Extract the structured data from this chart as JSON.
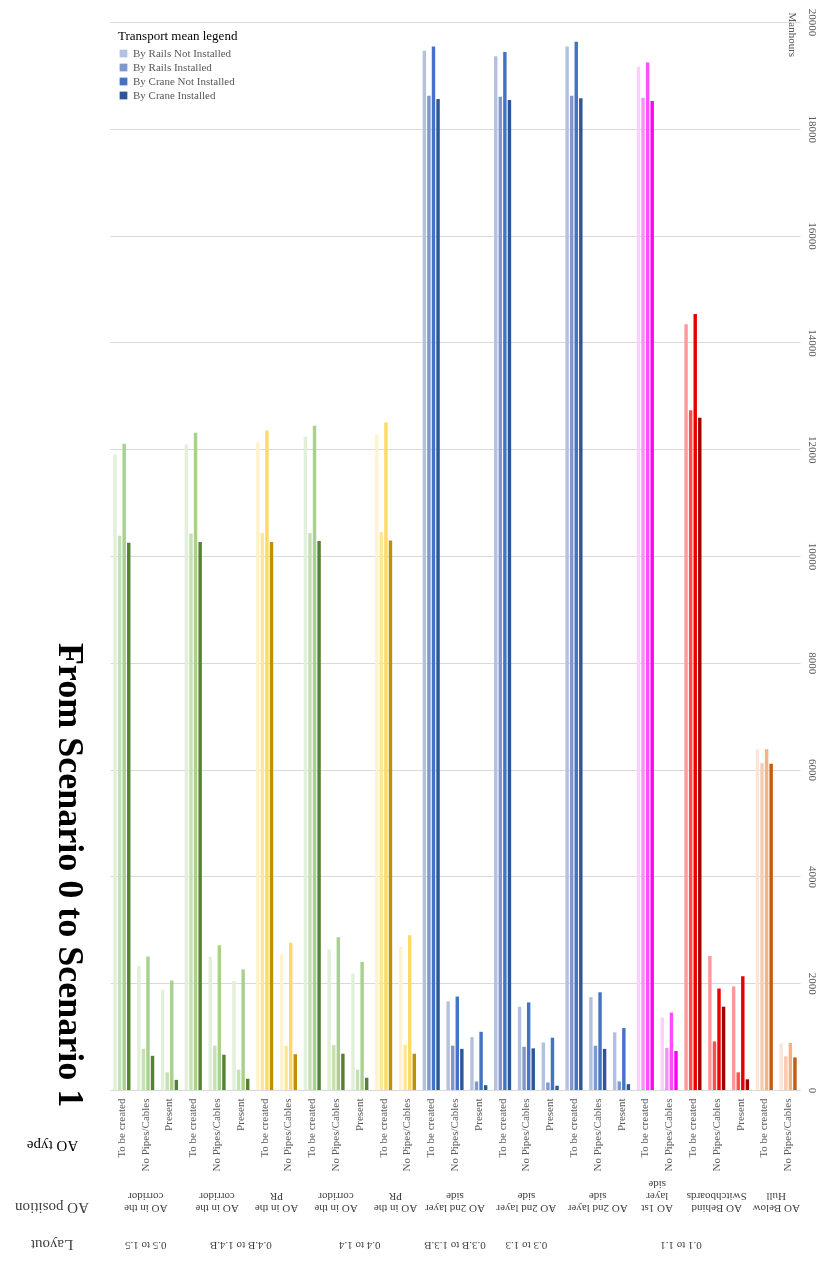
{
  "chart_data": {
    "type": "bar",
    "title": "From Scenario 0 to Scenario 1",
    "xlabel": "AO type",
    "ylabel": "Manhours",
    "legend_title": "Transport mean legend",
    "categories": [
      "To be created",
      "No Pipes/Cables",
      "Present",
      "To be created",
      "No Pipes/Cables",
      "Present",
      "To be created",
      "No Pipes/Cables",
      "To be created",
      "No Pipes/Cables",
      "Present",
      "To be created",
      "No Pipes/Cables",
      "To be created",
      "No Pipes/Cables",
      "Present",
      "To be created",
      "No Pipes/Cables",
      "Present",
      "To be created",
      "No Pipes/Cables",
      "Present",
      "To be created",
      "No Pipes/Cables",
      "To be created",
      "No Pipes/Cables",
      "Present",
      "To be created",
      "No Pipes/Cables"
    ],
    "series": [
      {
        "name": "By Rails Not Installed",
        "color": "#b4c0e0",
        "values": [
          11900,
          2320,
          1880,
          12090,
          2490,
          2040,
          12130,
          2540,
          12230,
          2630,
          2180,
          12270,
          2680,
          19460,
          1660,
          990,
          19360,
          1560,
          890,
          19540,
          1740,
          1080,
          19160,
          1360,
          14340,
          2510,
          1940,
          6380,
          870
        ],
        "colors": [
          "#e2efd9",
          "#e2efd9",
          "#e2efd9",
          "#e2efd9",
          "#e2efd9",
          "#e2efd9",
          "#fff2cc",
          "#fff2cc",
          "#e2efd9",
          "#e2efd9",
          "#e2efd9",
          "#fff2cc",
          "#fff2cc",
          "#b4c0e0",
          "#b4c0e0",
          "#b4c0e0",
          "#b4c0e0",
          "#b4c0e0",
          "#b4c0e0",
          "#b4c0e0",
          "#b4c0e0",
          "#b4c0e0",
          "#fbd0fb",
          "#fbd0fb",
          "#ff9999",
          "#ff9999",
          "#ff9999",
          "#fbe5d6",
          "#fbe5d6"
        ]
      },
      {
        "name": "By Rails Installed",
        "color": "#7f96cf",
        "values": [
          10380,
          770,
          330,
          10420,
          830,
          380,
          10430,
          830,
          10430,
          840,
          380,
          10450,
          850,
          18620,
          830,
          160,
          18600,
          810,
          140,
          18620,
          830,
          160,
          18580,
          790,
          12730,
          910,
          330,
          6120,
          630
        ],
        "colors": [
          "#c5e0b4",
          "#c5e0b4",
          "#c5e0b4",
          "#c5e0b4",
          "#c5e0b4",
          "#c5e0b4",
          "#ffe699",
          "#ffe699",
          "#c5e0b4",
          "#c5e0b4",
          "#c5e0b4",
          "#ffe699",
          "#ffe699",
          "#7f96cf",
          "#7f96cf",
          "#7f96cf",
          "#7f96cf",
          "#7f96cf",
          "#7f96cf",
          "#7f96cf",
          "#7f96cf",
          "#7f96cf",
          "#f78ff7",
          "#f78ff7",
          "#ff4d4d",
          "#ff4d4d",
          "#ff4d4d",
          "#f8cbad",
          "#f8cbad"
        ]
      },
      {
        "name": "By Crane Not Installed",
        "color": "#4472c4",
        "values": [
          12100,
          2500,
          2050,
          12310,
          2710,
          2260,
          12350,
          2760,
          12440,
          2860,
          2400,
          12500,
          2900,
          19540,
          1750,
          1090,
          19440,
          1640,
          980,
          19630,
          1830,
          1160,
          19240,
          1450,
          14530,
          1900,
          2130,
          6380,
          880
        ],
        "colors": [
          "#a9d18e",
          "#a9d18e",
          "#a9d18e",
          "#a9d18e",
          "#a9d18e",
          "#a9d18e",
          "#ffd966",
          "#ffd966",
          "#a9d18e",
          "#a9d18e",
          "#a9d18e",
          "#ffd966",
          "#ffd966",
          "#4472c4",
          "#4472c4",
          "#4472c4",
          "#4472c4",
          "#4472c4",
          "#4472c4",
          "#4472c4",
          "#4472c4",
          "#4472c4",
          "#ff4dff",
          "#ff4dff",
          "#e60000",
          "#e60000",
          "#e60000",
          "#f4b183",
          "#f4b183"
        ]
      },
      {
        "name": "By Crane Installed",
        "color": "#2f5597",
        "values": [
          10250,
          640,
          190,
          10260,
          660,
          210,
          10260,
          670,
          10280,
          680,
          230,
          10290,
          680,
          18560,
          770,
          90,
          18540,
          780,
          80,
          18570,
          770,
          110,
          18520,
          730,
          12590,
          1560,
          200,
          6110,
          610
        ],
        "colors": [
          "#548235",
          "#548235",
          "#548235",
          "#548235",
          "#548235",
          "#548235",
          "#bf9000",
          "#bf9000",
          "#548235",
          "#548235",
          "#548235",
          "#bf9000",
          "#bf9000",
          "#2f5597",
          "#2f5597",
          "#2f5597",
          "#2f5597",
          "#2f5597",
          "#2f5597",
          "#2f5597",
          "#2f5597",
          "#2f5597",
          "#ff00ff",
          "#ff00ff",
          "#a50000",
          "#a50000",
          "#a50000",
          "#c55a11",
          "#c55a11"
        ]
      }
    ],
    "ylim": [
      0,
      20000
    ],
    "yticks": [
      0,
      2000,
      4000,
      6000,
      8000,
      10000,
      12000,
      14000,
      16000,
      18000,
      20000
    ],
    "annotations": [
      "AO in the corridor",
      "AO in the corridor",
      "AO in the PR",
      "AO in the corridor",
      "AO in the PR",
      "AO 2nd layer side",
      "AO 2nd layer side",
      "AO 2nd layer side",
      "AO 1st layer side",
      "AO Behind Switchboards",
      "AO Below Hull",
      "0.5 to 1.5",
      "0.4.B to 1.4.B",
      "0.4 to 1.4",
      "0.3.B to 1.3.B",
      "0.3 to 1.3",
      "0.1 to 1.1",
      "AO position",
      "Layout"
    ],
    "grid": "y",
    "legend": "top left"
  }
}
